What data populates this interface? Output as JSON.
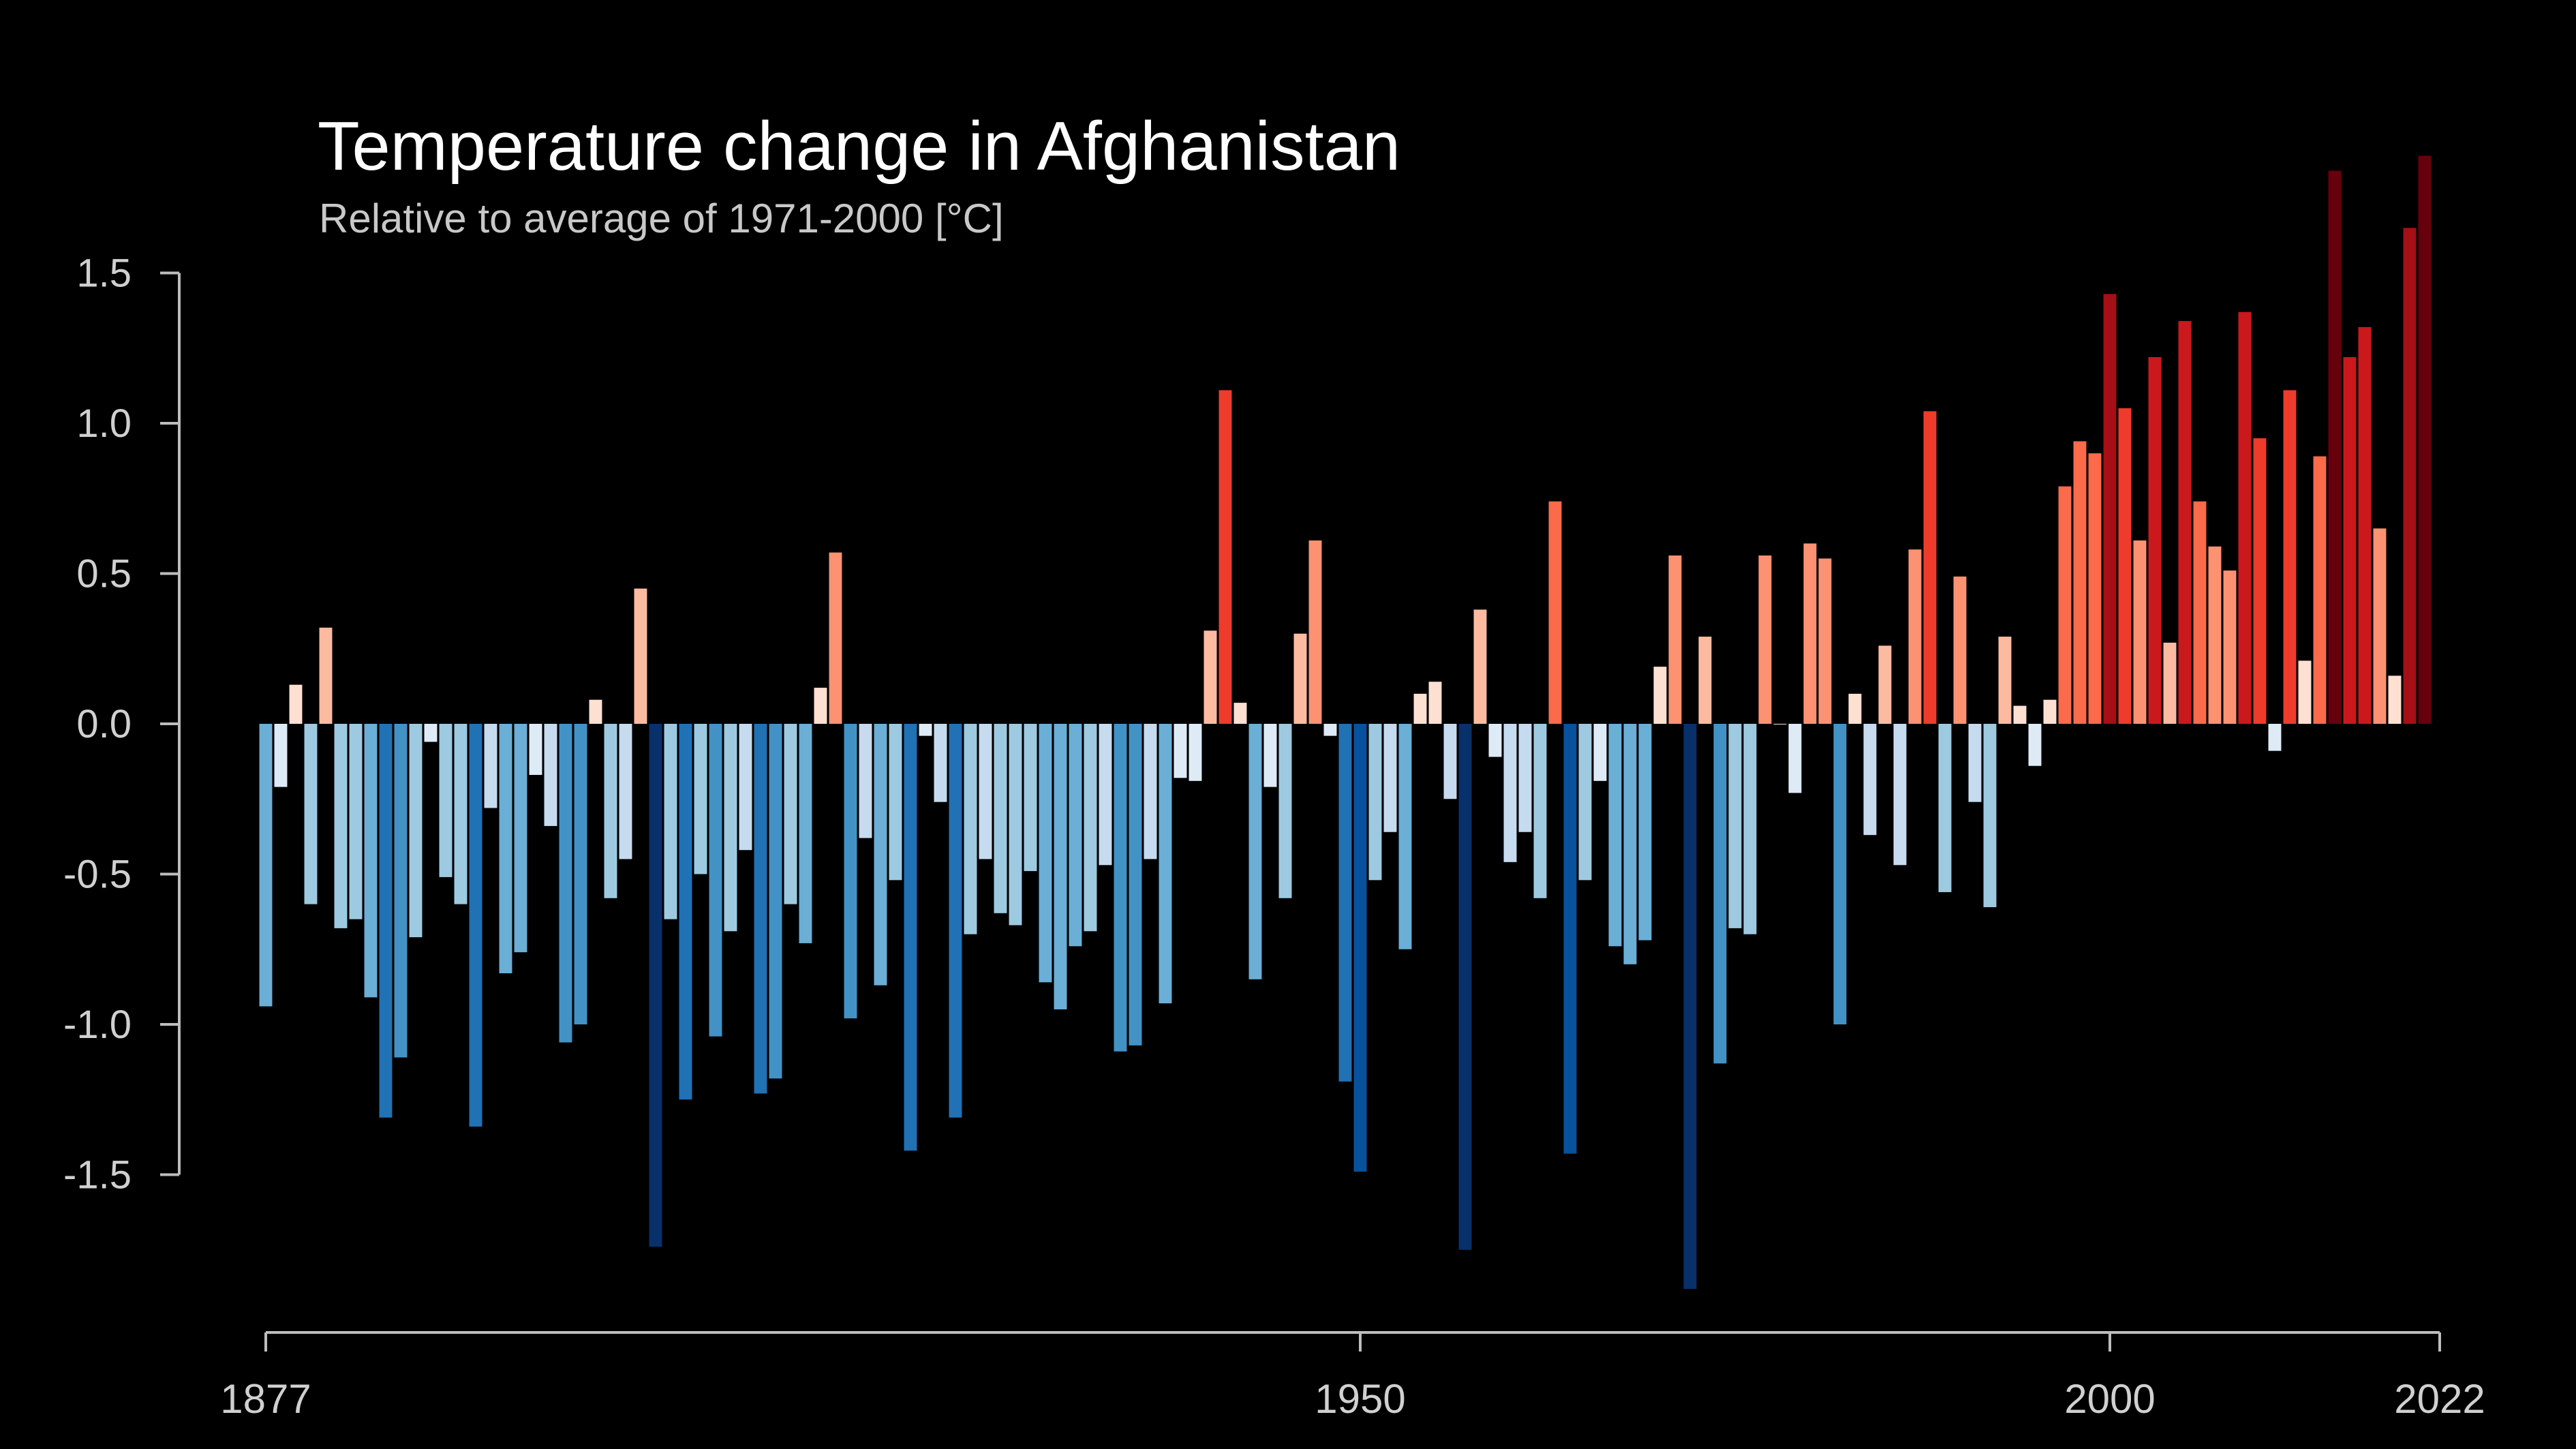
{
  "chart_data": {
    "type": "bar",
    "title": "Temperature change in Afghanistan",
    "subtitle": "Relative to average of 1971-2000  [°C]",
    "xlabel": "",
    "ylabel": "",
    "x_start": 1877,
    "x_end": 2022,
    "x_ticks": [
      "1877",
      "1950",
      "2000",
      "2022"
    ],
    "x_tick_values": [
      1877,
      1950,
      2000,
      2022
    ],
    "y_ticks": [
      "1.5",
      "1.0",
      "0.5",
      "0.0",
      "-0.5",
      "-1.0",
      "-1.5"
    ],
    "y_tick_values": [
      1.5,
      1.0,
      0.5,
      0.0,
      -0.5,
      -1.0,
      -1.5
    ],
    "ylim": [
      -1.9,
      1.9
    ],
    "grid": false,
    "legend": "none",
    "values": [
      -0.94,
      -0.21,
      0.13,
      -0.6,
      0.32,
      -0.68,
      -0.65,
      -0.91,
      -1.31,
      -1.11,
      -0.71,
      -0.06,
      -0.51,
      -0.6,
      -1.34,
      -0.28,
      -0.83,
      -0.76,
      -0.17,
      -0.34,
      -1.06,
      -1.0,
      0.08,
      -0.58,
      -0.45,
      0.45,
      -1.74,
      -0.65,
      -1.25,
      -0.5,
      -1.04,
      -0.69,
      -0.42,
      -1.23,
      -1.18,
      -0.6,
      -0.73,
      0.12,
      0.57,
      -0.98,
      -0.38,
      -0.87,
      -0.52,
      -1.42,
      -0.04,
      -0.26,
      -1.31,
      -0.7,
      -0.45,
      -0.63,
      -0.67,
      -0.49,
      -0.86,
      -0.95,
      -0.74,
      -0.69,
      -0.47,
      -1.09,
      -1.07,
      -0.45,
      -0.93,
      -0.18,
      -0.19,
      0.31,
      1.11,
      0.07,
      -0.85,
      -0.21,
      -0.58,
      0.3,
      0.61,
      -0.04,
      -1.19,
      -1.49,
      -0.52,
      -0.36,
      -0.75,
      0.1,
      0.14,
      -0.25,
      -1.75,
      0.38,
      -0.11,
      -0.46,
      -0.36,
      -0.58,
      0.74,
      -1.43,
      -0.52,
      -0.19,
      -0.74,
      -0.8,
      -0.72,
      0.19,
      0.56,
      -1.88,
      0.29,
      -1.13,
      -0.68,
      -0.7,
      0.56,
      0.0,
      -0.23,
      0.6,
      0.55,
      -1.0,
      0.1,
      -0.37,
      0.26,
      -0.47,
      0.58,
      1.04,
      -0.56,
      0.49,
      -0.26,
      -0.61,
      0.29,
      0.06,
      -0.14,
      0.08,
      0.79,
      0.94,
      0.9,
      1.43,
      1.05,
      0.61,
      1.22,
      0.27,
      1.34,
      0.74,
      0.59,
      0.51,
      1.37,
      0.95,
      -0.09,
      1.11,
      0.21,
      0.89,
      1.84,
      1.22,
      1.32,
      0.65,
      0.16,
      1.65,
      1.89
    ],
    "colors": {
      "background": "#000000",
      "axis": "#bdbdbd",
      "title": "#ffffff",
      "subtitle": "#c8c8c8",
      "tick_label": "#d0d0d0",
      "bar_scale_cold": [
        "#08306b",
        "#08519c",
        "#2171b5",
        "#4292c6",
        "#6baed6",
        "#9ecae1",
        "#c6dbef",
        "#deebf7"
      ],
      "bar_scale_warm": [
        "#fee0d2",
        "#fcbba1",
        "#fc9272",
        "#fb6a4a",
        "#ef3b2c",
        "#cb181d",
        "#a50f15",
        "#67000d"
      ]
    }
  }
}
